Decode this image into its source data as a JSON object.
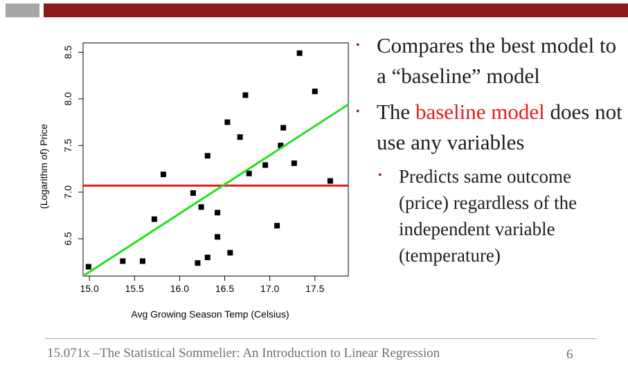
{
  "chart_data": {
    "type": "scatter",
    "xlabel": "Avg Growing Season Temp (Celsius)",
    "ylabel": "(Logarithm of) Price",
    "xlim": [
      14.93,
      17.87
    ],
    "ylim": [
      6.1,
      8.6
    ],
    "xticks": [
      "15.0",
      "15.5",
      "16.0",
      "16.5",
      "17.0",
      "17.5"
    ],
    "yticks": [
      "6.5",
      "7.0",
      "7.5",
      "8.0",
      "8.5"
    ],
    "points": [
      {
        "x": 14.99,
        "y": 6.2
      },
      {
        "x": 15.37,
        "y": 6.26
      },
      {
        "x": 15.59,
        "y": 6.26
      },
      {
        "x": 15.72,
        "y": 6.71
      },
      {
        "x": 15.82,
        "y": 7.19
      },
      {
        "x": 16.15,
        "y": 6.99
      },
      {
        "x": 16.2,
        "y": 6.24
      },
      {
        "x": 16.24,
        "y": 6.84
      },
      {
        "x": 16.31,
        "y": 6.3
      },
      {
        "x": 16.31,
        "y": 7.39
      },
      {
        "x": 16.42,
        "y": 6.78
      },
      {
        "x": 16.42,
        "y": 6.52
      },
      {
        "x": 16.53,
        "y": 7.75
      },
      {
        "x": 16.56,
        "y": 6.35
      },
      {
        "x": 16.67,
        "y": 7.59
      },
      {
        "x": 16.73,
        "y": 8.04
      },
      {
        "x": 16.77,
        "y": 7.2
      },
      {
        "x": 16.95,
        "y": 7.29
      },
      {
        "x": 17.08,
        "y": 6.64
      },
      {
        "x": 17.12,
        "y": 7.5
      },
      {
        "x": 17.15,
        "y": 7.69
      },
      {
        "x": 17.27,
        "y": 7.31
      },
      {
        "x": 17.33,
        "y": 8.49
      },
      {
        "x": 17.5,
        "y": 8.08
      },
      {
        "x": 17.67,
        "y": 7.12
      }
    ],
    "lines": [
      {
        "color": "#e41a1c",
        "x1": 14.93,
        "y1": 7.07,
        "x2": 17.87,
        "y2": 7.07
      },
      {
        "color": "#22e022",
        "x1": 14.93,
        "y1": 6.1,
        "x2": 17.87,
        "y2": 7.94
      }
    ]
  },
  "bullets": {
    "b1": "Compares the best model to a “baseline” model",
    "b2_pre": "The",
    "b2_red": "baseline model",
    "b2_post": "does not use any variables",
    "sub1": "Predicts same outcome (price) regardless of the independent variable (temperature)"
  },
  "footer": {
    "text": "15.071x –The Statistical Sommelier: An Introduction to Linear Regression",
    "page": "6"
  },
  "colors": {
    "accent": "#8b1a1a",
    "highlight": "#e81c1c",
    "fit_line": "#22e022",
    "baseline_line": "#e41a1c"
  }
}
